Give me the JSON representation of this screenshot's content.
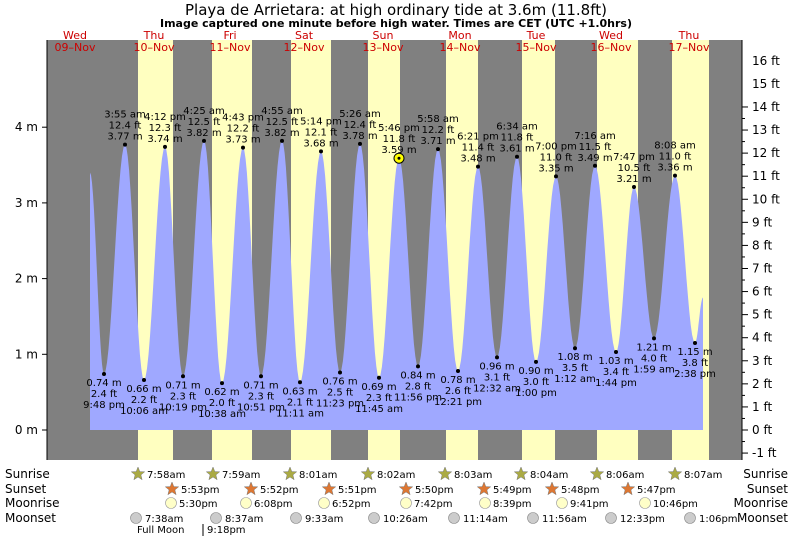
{
  "chart_data": {
    "type": "area",
    "title": "Playa de Arrietara: at high  ordinary tide at 3.6m (11.8ft)",
    "subtitle": "Image captured one minute before high water. Times are CET (UTC +1.0hrs)",
    "ylabel_left_unit": "m",
    "ylabel_right_unit": "ft",
    "ylim_m": [
      -0.3,
      5.0
    ],
    "y_ticks_m": [
      "0 m",
      "1 m",
      "2 m",
      "3 m",
      "4 m"
    ],
    "y_ticks_ft": [
      "-1 ft",
      "0 ft",
      "1 ft",
      "2 ft",
      "3 ft",
      "4 ft",
      "5 ft",
      "6 ft",
      "7 ft",
      "8 ft",
      "9 ft",
      "10 ft",
      "11 ft",
      "12 ft",
      "13 ft",
      "14 ft",
      "15 ft",
      "16 ft"
    ],
    "days": [
      {
        "dow": "Wed",
        "date": "09–Nov"
      },
      {
        "dow": "Thu",
        "date": "10–Nov"
      },
      {
        "dow": "Fri",
        "date": "11–Nov"
      },
      {
        "dow": "Sat",
        "date": "12–Nov"
      },
      {
        "dow": "Sun",
        "date": "13–Nov"
      },
      {
        "dow": "Mon",
        "date": "14–Nov"
      },
      {
        "dow": "Tue",
        "date": "15–Nov"
      },
      {
        "dow": "Wed",
        "date": "16–Nov"
      },
      {
        "dow": "Thu",
        "date": "17–Nov"
      }
    ],
    "high_tides": [
      {
        "time": "3:55 am",
        "ft": "12.4 ft",
        "m": 3.77,
        "label": "3.77 m"
      },
      {
        "time": "4:12 pm",
        "ft": "12.3 ft",
        "m": 3.74,
        "label": "3.74 m"
      },
      {
        "time": "4:25 am",
        "ft": "12.5 ft",
        "m": 3.82,
        "label": "3.82 m"
      },
      {
        "time": "4:43 pm",
        "ft": "12.2 ft",
        "m": 3.73,
        "label": "3.73 m"
      },
      {
        "time": "4:55 am",
        "ft": "12.5 ft",
        "m": 3.82,
        "label": "3.82 m"
      },
      {
        "time": "5:14 pm",
        "ft": "12.1 ft",
        "m": 3.68,
        "label": "3.68 m"
      },
      {
        "time": "5:26 am",
        "ft": "12.4 ft",
        "m": 3.78,
        "label": "3.78 m"
      },
      {
        "time": "5:46 pm",
        "ft": "11.8 ft",
        "m": 3.59,
        "label": "3.59 m"
      },
      {
        "time": "5:58 am",
        "ft": "12.2 ft",
        "m": 3.71,
        "label": "3.71 m"
      },
      {
        "time": "6:21 pm",
        "ft": "11.4 ft",
        "m": 3.48,
        "label": "3.48 m"
      },
      {
        "time": "6:34 am",
        "ft": "11.8 ft",
        "m": 3.61,
        "label": "3.61 m"
      },
      {
        "time": "7:00 pm",
        "ft": "11.0 ft",
        "m": 3.35,
        "label": "3.35 m"
      },
      {
        "time": "7:16 am",
        "ft": "11.5 ft",
        "m": 3.49,
        "label": "3.49 m"
      },
      {
        "time": "7:47 pm",
        "ft": "10.5 ft",
        "m": 3.21,
        "label": "3.21 m"
      },
      {
        "time": "8:08 am",
        "ft": "11.0 ft",
        "m": 3.36,
        "label": "3.36 m"
      }
    ],
    "low_tides": [
      {
        "time": "9:48 pm",
        "ft": "2.4 ft",
        "m": 0.74,
        "label": "0.74 m"
      },
      {
        "time": "10:06 am",
        "ft": "2.2 ft",
        "m": 0.66,
        "label": "0.66 m"
      },
      {
        "time": "10:19 pm",
        "ft": "2.3 ft",
        "m": 0.71,
        "label": "0.71 m"
      },
      {
        "time": "10:38 am",
        "ft": "2.0 ft",
        "m": 0.62,
        "label": "0.62 m"
      },
      {
        "time": "10:51 pm",
        "ft": "2.3 ft",
        "m": 0.71,
        "label": "0.71 m"
      },
      {
        "time": "11:11 am",
        "ft": "2.1 ft",
        "m": 0.63,
        "label": "0.63 m"
      },
      {
        "time": "11:23 pm",
        "ft": "2.5 ft",
        "m": 0.76,
        "label": "0.76 m"
      },
      {
        "time": "11:45 am",
        "ft": "2.3 ft",
        "m": 0.69,
        "label": "0.69 m"
      },
      {
        "time": "11:56 pm",
        "ft": "2.8 ft",
        "m": 0.84,
        "label": "0.84 m"
      },
      {
        "time": "12:21 pm",
        "ft": "2.6 ft",
        "m": 0.78,
        "label": "0.78 m"
      },
      {
        "time": "12:32 am",
        "ft": "3.1 ft",
        "m": 0.96,
        "label": "0.96 m"
      },
      {
        "time": "1:00 pm",
        "ft": "3.0 ft",
        "m": 0.9,
        "label": "0.90 m"
      },
      {
        "time": "1:12 am",
        "ft": "3.5 ft",
        "m": 1.08,
        "label": "1.08 m"
      },
      {
        "time": "1:44 pm",
        "ft": "3.4 ft",
        "m": 1.03,
        "label": "1.03 m"
      },
      {
        "time": "1:59 am",
        "ft": "4.0 ft",
        "m": 1.21,
        "label": "1.21 m"
      },
      {
        "time": "2:38 pm",
        "ft": "3.8 ft",
        "m": 1.15,
        "label": "1.15 m"
      }
    ],
    "current_marker": {
      "value_m": 3.59
    },
    "sun_moon_labels": {
      "sunrise": "Sunrise",
      "sunset": "Sunset",
      "moonrise": "Moonrise",
      "moonset": "Moonset"
    },
    "sunrise": [
      "7:58am",
      "7:59am",
      "8:01am",
      "8:02am",
      "8:03am",
      "8:04am",
      "8:06am",
      "8:07am"
    ],
    "sunset": [
      "5:53pm",
      "5:52pm",
      "5:51pm",
      "5:50pm",
      "5:49pm",
      "5:48pm",
      "5:47pm"
    ],
    "moonrise": [
      "5:30pm",
      "6:08pm",
      "6:52pm",
      "7:42pm",
      "8:39pm",
      "9:41pm",
      "10:46pm"
    ],
    "moonset": [
      "7:38am",
      "8:37am",
      "9:33am",
      "10:26am",
      "11:14am",
      "11:56am",
      "12:33pm",
      "1:06pm"
    ],
    "moon_phase": {
      "label": "Full Moon",
      "time": "9:18pm"
    },
    "colors": {
      "night": "#808080",
      "day": "#ffffc0",
      "water": "#9fa8ff",
      "day_label": "#cc0000",
      "sun_star": "#aaaa44",
      "sunset_star": "#dd7733"
    }
  }
}
